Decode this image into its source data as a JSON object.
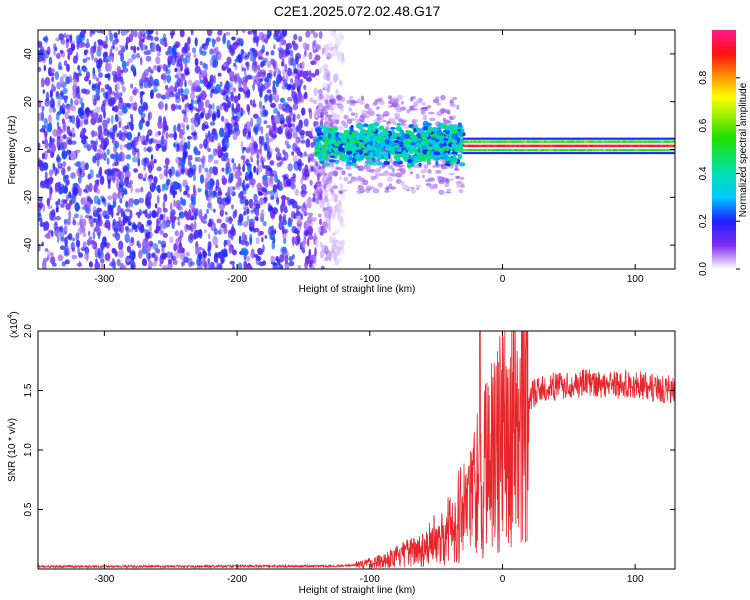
{
  "title": "C2E1.2025.072.02.48.G17",
  "colors": {
    "snr_line": "#e8262a",
    "axis": "#000000"
  },
  "chart_data": [
    {
      "type": "heatmap",
      "name": "spectrogram",
      "xlabel": "Height of straight line (km)",
      "ylabel": "Frequency (Hz)",
      "xlim": [
        -350,
        130
      ],
      "ylim": [
        -50,
        50
      ],
      "xticks": [
        -300,
        -200,
        -100,
        0,
        100
      ],
      "yticks": [
        -40,
        -20,
        0,
        20,
        40
      ],
      "colorbar": {
        "label": "Normalized spectral amplitude",
        "range": [
          0,
          1
        ],
        "ticks": [
          "0.0",
          "0.2",
          "0.4",
          "0.6",
          "0.8"
        ]
      },
      "regions": [
        {
          "name": "noise",
          "x": [
            -350,
            -130
          ],
          "freq": [
            -50,
            50
          ],
          "amplitude": [
            0.05,
            0.25
          ]
        },
        {
          "name": "transition",
          "x": [
            -140,
            -30
          ],
          "freq_center": 2,
          "freq_halfwidth": 9,
          "amplitude": [
            0.2,
            0.5
          ]
        },
        {
          "name": "carrier",
          "x": [
            -30,
            130
          ],
          "freq_center": 1.5,
          "freq_halfwidth": 3,
          "amplitude": [
            0.85,
            1.0
          ]
        }
      ]
    },
    {
      "type": "line",
      "name": "snr",
      "xlabel": "Height of straight line (km)",
      "ylabel": "SNR (10 * v/v)",
      "scale_label_base": "(x10",
      "scale_label_exp": "4",
      "scale_label_end": ")",
      "xlim": [
        -350,
        130
      ],
      "ylim": [
        0,
        2.0
      ],
      "xticks": [
        -300,
        -200,
        -100,
        0,
        100
      ],
      "yticks": [
        "0.5",
        "1.0",
        "1.5",
        "2.0"
      ],
      "profile": [
        [
          -350,
          0.02
        ],
        [
          -120,
          0.025
        ],
        [
          -100,
          0.05
        ],
        [
          -80,
          0.1
        ],
        [
          -60,
          0.18
        ],
        [
          -50,
          0.25
        ],
        [
          -40,
          0.35
        ],
        [
          -30,
          0.5
        ],
        [
          -20,
          0.7
        ],
        [
          -10,
          0.9
        ],
        [
          0,
          1.1
        ],
        [
          10,
          1.3
        ],
        [
          20,
          1.45
        ],
        [
          30,
          1.52
        ],
        [
          60,
          1.56
        ],
        [
          100,
          1.55
        ],
        [
          130,
          1.5
        ]
      ],
      "spike": {
        "x": -17,
        "y": 2.0
      }
    }
  ]
}
